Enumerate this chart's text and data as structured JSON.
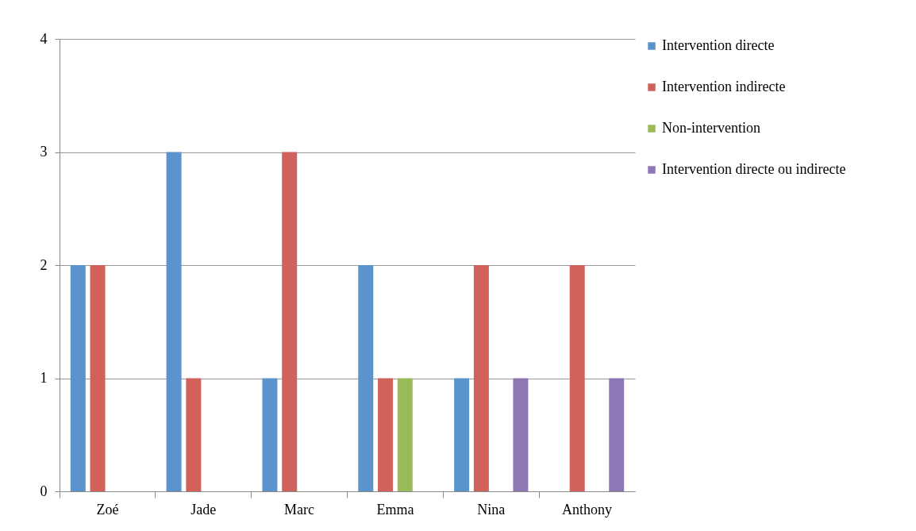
{
  "chart_data": {
    "type": "bar",
    "categories": [
      "Zoé",
      "Jade",
      "Marc",
      "Emma",
      "Nina",
      "Anthony"
    ],
    "series": [
      {
        "name": "Intervention directe",
        "color": "#5b93cc",
        "values": [
          2,
          3,
          1,
          2,
          1,
          0
        ]
      },
      {
        "name": "Intervention indirecte",
        "color": "#d1625b",
        "values": [
          2,
          1,
          3,
          1,
          2,
          2
        ]
      },
      {
        "name": "Non-intervention",
        "color": "#9bbb59",
        "values": [
          0,
          0,
          0,
          1,
          0,
          0
        ]
      },
      {
        "name": "Intervention directe ou indirecte",
        "color": "#8e77b5",
        "values": [
          0,
          0,
          0,
          0,
          1,
          1
        ]
      }
    ],
    "ylim": [
      0,
      4
    ],
    "yticks": [
      0,
      1,
      2,
      3,
      4
    ],
    "grid": "y",
    "legend": "right"
  }
}
